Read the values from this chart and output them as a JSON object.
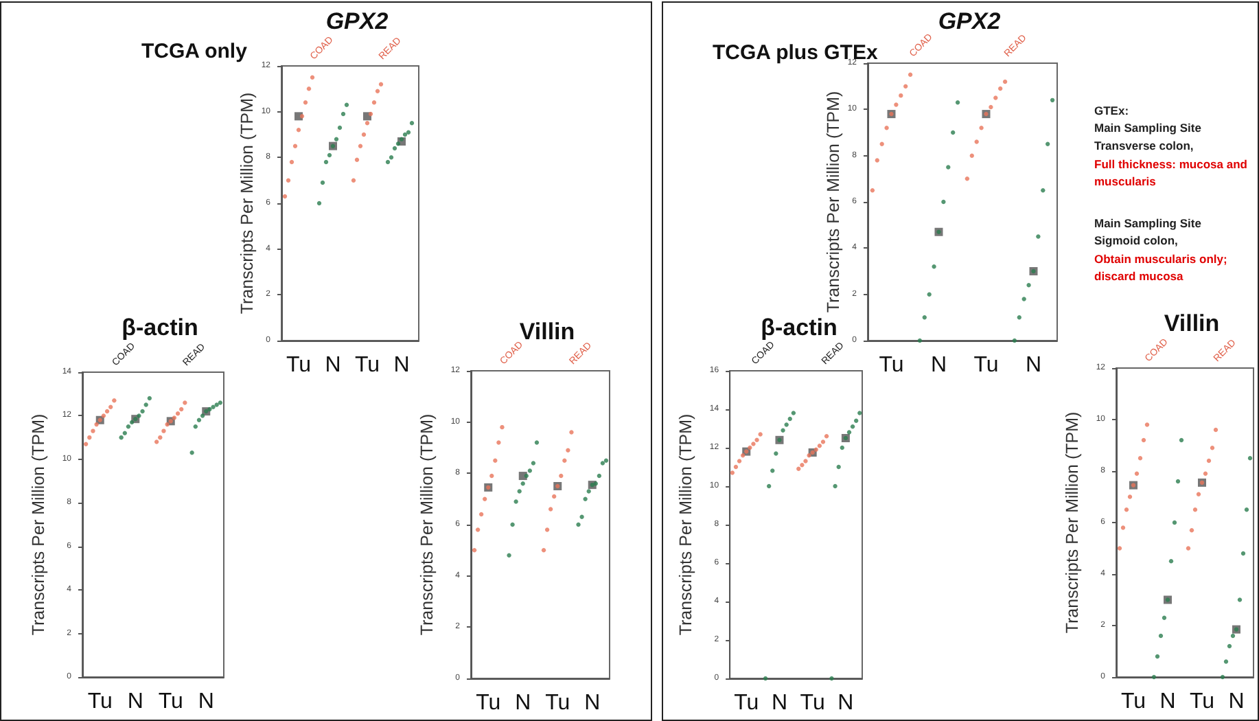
{
  "chart_data": [
    {
      "type": "scatter",
      "title": "GPX2",
      "ylabel": "Transcripts Per Million (TPM)",
      "annotations": [
        "TCGA only",
        "COAD",
        "READ"
      ],
      "categories": [
        "Tu",
        "N",
        "Tu",
        "N"
      ],
      "ylim": [
        0,
        12
      ],
      "yticks": [
        0,
        2,
        4,
        6,
        8,
        10,
        12
      ],
      "marker": "circle",
      "series": [
        {
          "colors": [
            "#e8745a",
            "#2a7d4f",
            "#e8745a",
            "#2a7d4f"
          ],
          "values": [
            6.3,
            6.0,
            7.0,
            7.8
          ]
        },
        {
          "colors": [
            "#e8745a",
            "#2a7d4f",
            "#e8745a",
            "#2a7d4f"
          ],
          "values": [
            7.0,
            6.9,
            7.9,
            8.0
          ]
        },
        {
          "colors": [
            "#e8745a",
            "#2a7d4f",
            "#e8745a",
            "#2a7d4f"
          ],
          "values": [
            7.8,
            7.8,
            8.5,
            8.4
          ]
        },
        {
          "colors": [
            "#e8745a",
            "#2a7d4f",
            "#e8745a",
            "#2a7d4f"
          ],
          "values": [
            8.5,
            8.1,
            9.0,
            8.6
          ]
        },
        {
          "colors": [
            "#e8745a",
            "#2a7d4f",
            "#e8745a",
            "#2a7d4f"
          ],
          "values": [
            9.2,
            8.5,
            9.5,
            8.8
          ]
        },
        {
          "colors": [
            "#e8745a",
            "#2a7d4f",
            "#e8745a",
            "#2a7d4f"
          ],
          "values": [
            9.8,
            8.8,
            9.9,
            9.0
          ]
        },
        {
          "colors": [
            "#e8745a",
            "#2a7d4f",
            "#e8745a",
            "#2a7d4f"
          ],
          "values": [
            10.4,
            9.3,
            10.4,
            9.1
          ]
        },
        {
          "colors": [
            "#e8745a",
            "#2a7d4f",
            "#e8745a",
            "#2a7d4f"
          ],
          "values": [
            11.0,
            9.9,
            10.9,
            9.5
          ]
        },
        {
          "colors": [
            "#e8745a",
            "#2a7d4f",
            "#e8745a",
            "#2a7d4f"
          ],
          "values": [
            11.5,
            10.3,
            11.2,
            null
          ]
        },
        {
          "marker": "square",
          "color": "#555555",
          "values": [
            9.8,
            8.5,
            9.8,
            8.7
          ]
        }
      ]
    },
    {
      "type": "scatter",
      "title": "β-actin",
      "ylabel": "Transcripts Per Million (TPM)",
      "annotations": [
        "COAD",
        "READ"
      ],
      "categories": [
        "Tu",
        "N",
        "Tu",
        "N"
      ],
      "ylim": [
        0,
        14
      ],
      "yticks": [
        0,
        2,
        4,
        6,
        8,
        10,
        12,
        14
      ],
      "marker": "circle",
      "series": [
        {
          "colors": [
            "#e8745a",
            "#2a7d4f",
            "#e8745a",
            "#2a7d4f"
          ],
          "values": [
            10.7,
            11.0,
            10.8,
            10.3
          ]
        },
        {
          "colors": [
            "#e8745a",
            "#2a7d4f",
            "#e8745a",
            "#2a7d4f"
          ],
          "values": [
            11.0,
            11.2,
            11.0,
            11.5
          ]
        },
        {
          "colors": [
            "#e8745a",
            "#2a7d4f",
            "#e8745a",
            "#2a7d4f"
          ],
          "values": [
            11.3,
            11.5,
            11.3,
            11.8
          ]
        },
        {
          "colors": [
            "#e8745a",
            "#2a7d4f",
            "#e8745a",
            "#2a7d4f"
          ],
          "values": [
            11.6,
            11.7,
            11.6,
            12.0
          ]
        },
        {
          "colors": [
            "#e8745a",
            "#2a7d4f",
            "#e8745a",
            "#2a7d4f"
          ],
          "values": [
            11.8,
            11.85,
            11.75,
            12.2
          ]
        },
        {
          "colors": [
            "#e8745a",
            "#2a7d4f",
            "#e8745a",
            "#2a7d4f"
          ],
          "values": [
            12.0,
            12.0,
            11.9,
            12.3
          ]
        },
        {
          "colors": [
            "#e8745a",
            "#2a7d4f",
            "#e8745a",
            "#2a7d4f"
          ],
          "values": [
            12.2,
            12.2,
            12.1,
            12.4
          ]
        },
        {
          "colors": [
            "#e8745a",
            "#2a7d4f",
            "#e8745a",
            "#2a7d4f"
          ],
          "values": [
            12.4,
            12.5,
            12.3,
            12.5
          ]
        },
        {
          "colors": [
            "#e8745a",
            "#2a7d4f",
            "#e8745a",
            "#2a7d4f"
          ],
          "values": [
            12.7,
            12.8,
            12.6,
            12.6
          ]
        },
        {
          "marker": "square",
          "color": "#555555",
          "values": [
            11.8,
            11.85,
            11.75,
            12.2
          ]
        }
      ]
    },
    {
      "type": "scatter",
      "title": "Villin",
      "ylabel": "Transcripts Per Million (TPM)",
      "annotations": [
        "COAD",
        "READ"
      ],
      "categories": [
        "Tu",
        "N",
        "Tu",
        "N"
      ],
      "ylim": [
        0,
        12
      ],
      "yticks": [
        0,
        2,
        4,
        6,
        8,
        10,
        12
      ],
      "marker": "circle",
      "series": [
        {
          "colors": [
            "#e8745a",
            "#2a7d4f",
            "#e8745a",
            "#2a7d4f"
          ],
          "values": [
            5.0,
            4.8,
            5.0,
            6.0
          ]
        },
        {
          "colors": [
            "#e8745a",
            "#2a7d4f",
            "#e8745a",
            "#2a7d4f"
          ],
          "values": [
            5.8,
            6.0,
            5.8,
            6.3
          ]
        },
        {
          "colors": [
            "#e8745a",
            "#2a7d4f",
            "#e8745a",
            "#2a7d4f"
          ],
          "values": [
            6.4,
            6.9,
            6.6,
            7.0
          ]
        },
        {
          "colors": [
            "#e8745a",
            "#2a7d4f",
            "#e8745a",
            "#2a7d4f"
          ],
          "values": [
            7.0,
            7.3,
            7.1,
            7.3
          ]
        },
        {
          "colors": [
            "#e8745a",
            "#2a7d4f",
            "#e8745a",
            "#2a7d4f"
          ],
          "values": [
            7.45,
            7.6,
            7.5,
            7.55
          ]
        },
        {
          "colors": [
            "#e8745a",
            "#2a7d4f",
            "#e8745a",
            "#2a7d4f"
          ],
          "values": [
            7.9,
            7.9,
            7.9,
            7.6
          ]
        },
        {
          "colors": [
            "#e8745a",
            "#2a7d4f",
            "#e8745a",
            "#2a7d4f"
          ],
          "values": [
            8.5,
            8.1,
            8.5,
            7.9
          ]
        },
        {
          "colors": [
            "#e8745a",
            "#2a7d4f",
            "#e8745a",
            "#2a7d4f"
          ],
          "values": [
            9.2,
            8.4,
            8.9,
            8.4
          ]
        },
        {
          "colors": [
            "#e8745a",
            "#2a7d4f",
            "#e8745a",
            "#2a7d4f"
          ],
          "values": [
            9.8,
            9.2,
            9.6,
            8.5
          ]
        },
        {
          "marker": "square",
          "color": "#555555",
          "values": [
            7.45,
            7.9,
            7.5,
            7.55
          ]
        }
      ]
    },
    {
      "type": "scatter",
      "title": "GPX2",
      "ylabel": "Transcripts Per Million (TPM)",
      "annotations": [
        "TCGA plus GTEx",
        "GTEx:\nMain Sampling Site\nTransverse colon,",
        "Full thickness: mucosa and\nmuscularis",
        "Main Sampling Site\nSigmoid colon,",
        "Obtain muscularis only;\ndiscard mucosa",
        "COAD",
        "READ"
      ],
      "categories": [
        "Tu",
        "N",
        "Tu",
        "N"
      ],
      "ylim": [
        0,
        12
      ],
      "yticks": [
        0,
        2,
        4,
        6,
        8,
        10,
        12
      ],
      "marker": "circle",
      "series": [
        {
          "colors": [
            "#e8745a",
            "#2a7d4f",
            "#e8745a",
            "#2a7d4f"
          ],
          "values": [
            6.5,
            0,
            7.0,
            0
          ]
        },
        {
          "colors": [
            "#e8745a",
            "#2a7d4f",
            "#e8745a",
            "#2a7d4f"
          ],
          "values": [
            7.8,
            1.0,
            8.0,
            1.0
          ]
        },
        {
          "colors": [
            "#e8745a",
            "#2a7d4f",
            "#e8745a",
            "#2a7d4f"
          ],
          "values": [
            8.5,
            2.0,
            8.6,
            1.8
          ]
        },
        {
          "colors": [
            "#e8745a",
            "#2a7d4f",
            "#e8745a",
            "#2a7d4f"
          ],
          "values": [
            9.2,
            3.2,
            9.2,
            2.4
          ]
        },
        {
          "colors": [
            "#e8745a",
            "#2a7d4f",
            "#e8745a",
            "#2a7d4f"
          ],
          "values": [
            9.8,
            4.7,
            9.8,
            3.0
          ]
        },
        {
          "colors": [
            "#e8745a",
            "#2a7d4f",
            "#e8745a",
            "#2a7d4f"
          ],
          "values": [
            10.2,
            6.0,
            10.1,
            4.5
          ]
        },
        {
          "colors": [
            "#e8745a",
            "#2a7d4f",
            "#e8745a",
            "#2a7d4f"
          ],
          "values": [
            10.6,
            7.5,
            10.5,
            6.5
          ]
        },
        {
          "colors": [
            "#e8745a",
            "#2a7d4f",
            "#e8745a",
            "#2a7d4f"
          ],
          "values": [
            11.0,
            9.0,
            10.9,
            8.5
          ]
        },
        {
          "colors": [
            "#e8745a",
            "#2a7d4f",
            "#e8745a",
            "#2a7d4f"
          ],
          "values": [
            11.5,
            10.3,
            11.2,
            10.4
          ]
        },
        {
          "marker": "square",
          "color": "#555555",
          "values": [
            9.8,
            4.7,
            9.8,
            3.0
          ]
        }
      ]
    },
    {
      "type": "scatter",
      "title": "β-actin",
      "ylabel": "Transcripts Per Million (TPM)",
      "annotations": [
        "COAD",
        "READ"
      ],
      "categories": [
        "Tu",
        "N",
        "Tu",
        "N"
      ],
      "ylim": [
        0,
        16
      ],
      "yticks": [
        0,
        2,
        4,
        6,
        8,
        10,
        12,
        14,
        16
      ],
      "marker": "circle",
      "series": [
        {
          "colors": [
            "#e8745a",
            "#2a7d4f",
            "#e8745a",
            "#2a7d4f"
          ],
          "values": [
            10.7,
            0,
            10.9,
            0
          ]
        },
        {
          "colors": [
            "#e8745a",
            "#2a7d4f",
            "#e8745a",
            "#2a7d4f"
          ],
          "values": [
            11.0,
            10.0,
            11.1,
            10.0
          ]
        },
        {
          "colors": [
            "#e8745a",
            "#2a7d4f",
            "#e8745a",
            "#2a7d4f"
          ],
          "values": [
            11.3,
            10.8,
            11.3,
            11.0
          ]
        },
        {
          "colors": [
            "#e8745a",
            "#2a7d4f",
            "#e8745a",
            "#2a7d4f"
          ],
          "values": [
            11.6,
            11.7,
            11.6,
            12.0
          ]
        },
        {
          "colors": [
            "#e8745a",
            "#2a7d4f",
            "#e8745a",
            "#2a7d4f"
          ],
          "values": [
            11.8,
            12.4,
            11.75,
            12.5
          ]
        },
        {
          "colors": [
            "#e8745a",
            "#2a7d4f",
            "#e8745a",
            "#2a7d4f"
          ],
          "values": [
            12.0,
            12.9,
            11.9,
            12.8
          ]
        },
        {
          "colors": [
            "#e8745a",
            "#2a7d4f",
            "#e8745a",
            "#2a7d4f"
          ],
          "values": [
            12.2,
            13.2,
            12.1,
            13.1
          ]
        },
        {
          "colors": [
            "#e8745a",
            "#2a7d4f",
            "#e8745a",
            "#2a7d4f"
          ],
          "values": [
            12.4,
            13.5,
            12.3,
            13.4
          ]
        },
        {
          "colors": [
            "#e8745a",
            "#2a7d4f",
            "#e8745a",
            "#2a7d4f"
          ],
          "values": [
            12.7,
            13.8,
            12.6,
            13.8
          ]
        },
        {
          "marker": "square",
          "color": "#555555",
          "values": [
            11.8,
            12.4,
            11.75,
            12.5
          ]
        }
      ]
    },
    {
      "type": "scatter",
      "title": "Villin",
      "ylabel": "Transcripts Per Million (TPM)",
      "annotations": [
        "COAD",
        "READ"
      ],
      "categories": [
        "Tu",
        "N",
        "Tu",
        "N"
      ],
      "ylim": [
        0,
        12
      ],
      "yticks": [
        0,
        2,
        4,
        6,
        8,
        10,
        12
      ],
      "marker": "circle",
      "series": [
        {
          "colors": [
            "#e8745a",
            "#2a7d4f",
            "#e8745a",
            "#2a7d4f"
          ],
          "values": [
            5.0,
            0,
            5.0,
            0
          ]
        },
        {
          "colors": [
            "#e8745a",
            "#2a7d4f",
            "#e8745a",
            "#2a7d4f"
          ],
          "values": [
            5.8,
            0.8,
            5.7,
            0.6
          ]
        },
        {
          "colors": [
            "#e8745a",
            "#2a7d4f",
            "#e8745a",
            "#2a7d4f"
          ],
          "values": [
            6.5,
            1.6,
            6.5,
            1.2
          ]
        },
        {
          "colors": [
            "#e8745a",
            "#2a7d4f",
            "#e8745a",
            "#2a7d4f"
          ],
          "values": [
            7.0,
            2.3,
            7.1,
            1.6
          ]
        },
        {
          "colors": [
            "#e8745a",
            "#2a7d4f",
            "#e8745a",
            "#2a7d4f"
          ],
          "values": [
            7.45,
            3.0,
            7.55,
            1.85
          ]
        },
        {
          "colors": [
            "#e8745a",
            "#2a7d4f",
            "#e8745a",
            "#2a7d4f"
          ],
          "values": [
            7.9,
            4.5,
            7.9,
            3.0
          ]
        },
        {
          "colors": [
            "#e8745a",
            "#2a7d4f",
            "#e8745a",
            "#2a7d4f"
          ],
          "values": [
            8.5,
            6.0,
            8.4,
            4.8
          ]
        },
        {
          "colors": [
            "#e8745a",
            "#2a7d4f",
            "#e8745a",
            "#2a7d4f"
          ],
          "values": [
            9.2,
            7.6,
            8.9,
            6.5
          ]
        },
        {
          "colors": [
            "#e8745a",
            "#2a7d4f",
            "#e8745a",
            "#2a7d4f"
          ],
          "values": [
            9.8,
            9.2,
            9.6,
            8.5
          ]
        },
        {
          "marker": "square",
          "color": "#555555",
          "values": [
            7.45,
            3.0,
            7.55,
            1.85
          ]
        }
      ]
    }
  ]
}
